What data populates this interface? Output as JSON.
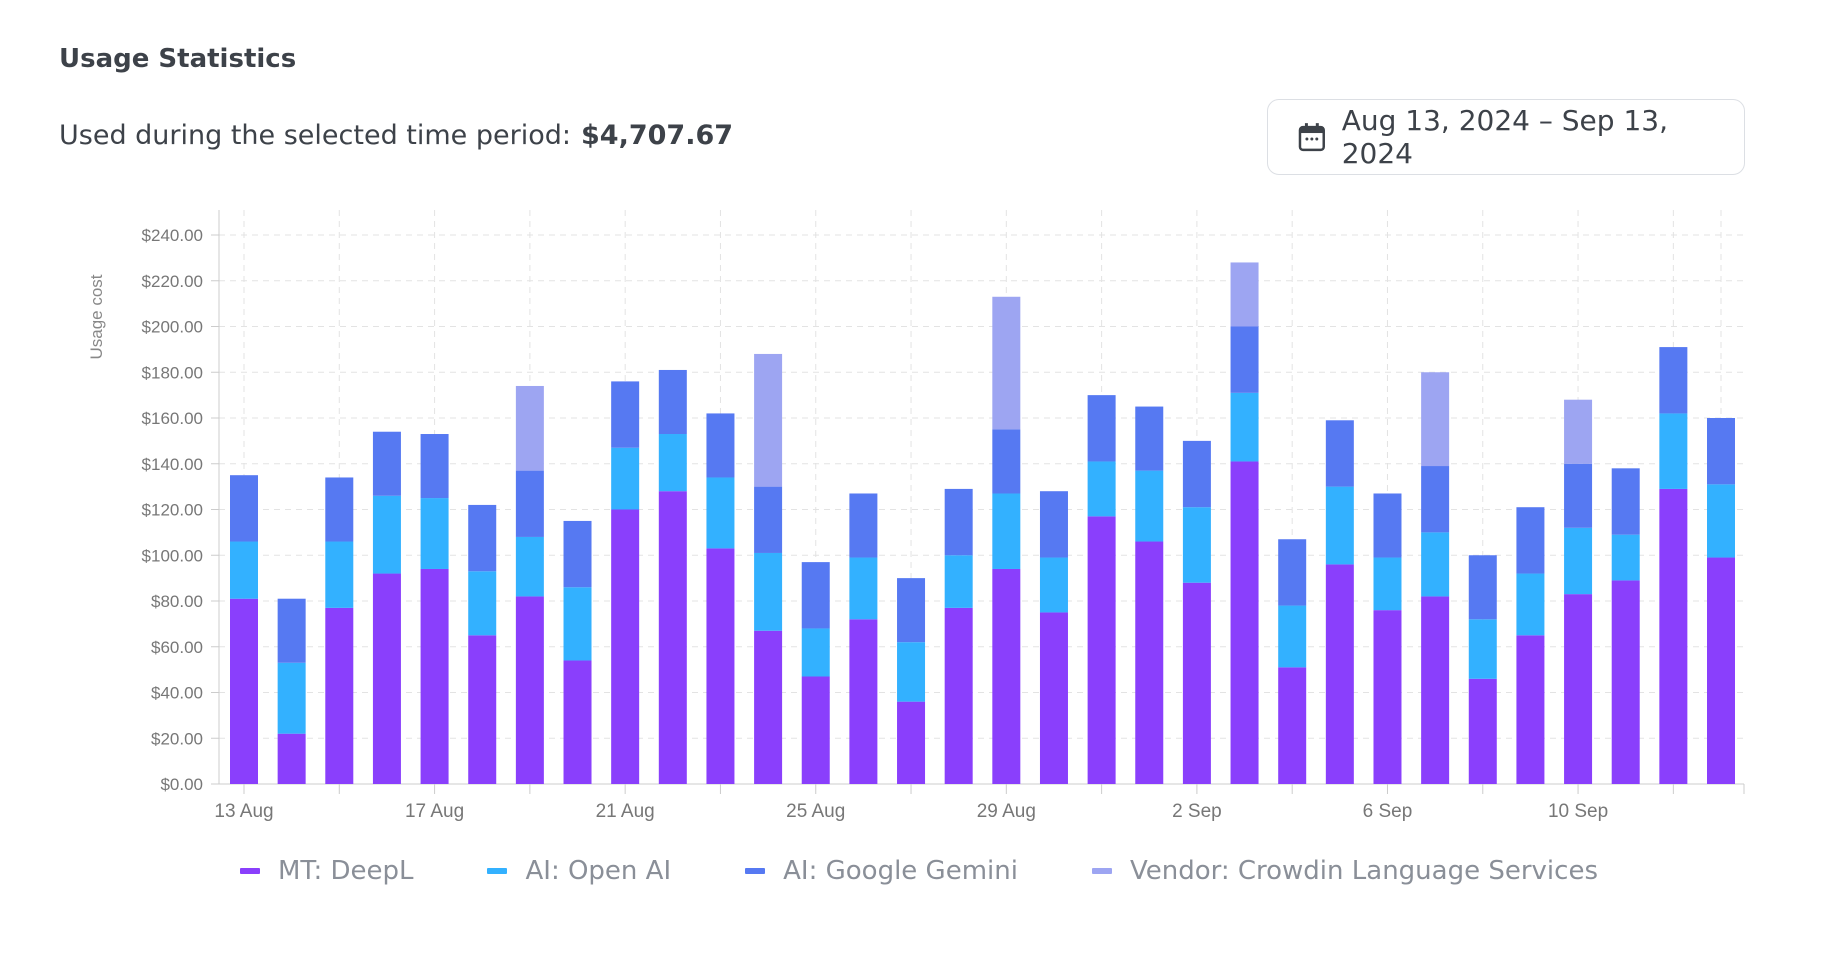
{
  "header": {
    "title": "Usage Statistics",
    "period_label": "Used during the selected time period:",
    "period_total": "$4,707.67",
    "date_range": "Aug 13, 2024 – Sep 13, 2024",
    "date_icon": "calendar-icon"
  },
  "chart_data": {
    "type": "bar",
    "stacked": true,
    "ylabel": "Usage cost",
    "xlabel": "",
    "ylim": [
      0,
      240
    ],
    "yticks": [
      "$0.00",
      "$20.00",
      "$40.00",
      "$60.00",
      "$80.00",
      "$100.00",
      "$120.00",
      "$140.00",
      "$160.00",
      "$180.00",
      "$200.00",
      "$220.00",
      "$240.00"
    ],
    "grid": true,
    "legend_position": "bottom",
    "categories": [
      "13 Aug",
      "14 Aug",
      "15 Aug",
      "16 Aug",
      "17 Aug",
      "18 Aug",
      "19 Aug",
      "20 Aug",
      "21 Aug",
      "22 Aug",
      "23 Aug",
      "24 Aug",
      "25 Aug",
      "26 Aug",
      "27 Aug",
      "28 Aug",
      "29 Aug",
      "30 Aug",
      "31 Aug",
      "1 Sep",
      "2 Sep",
      "3 Sep",
      "4 Sep",
      "5 Sep",
      "6 Sep",
      "7 Sep",
      "8 Sep",
      "9 Sep",
      "10 Sep",
      "11 Sep",
      "12 Sep",
      "13 Sep"
    ],
    "xtick_labels": [
      "13 Aug",
      "17 Aug",
      "21 Aug",
      "25 Aug",
      "29 Aug",
      "2 Sep",
      "6 Sep",
      "10 Sep"
    ],
    "series": [
      {
        "name": "MT: DeepL",
        "color": "#8a3ffc",
        "values": [
          81,
          22,
          77,
          92,
          94,
          65,
          82,
          54,
          120,
          128,
          103,
          67,
          47,
          72,
          36,
          77,
          94,
          75,
          117,
          106,
          88,
          141,
          51,
          96,
          76,
          82,
          46,
          65,
          83,
          89,
          129,
          99
        ]
      },
      {
        "name": "AI: Open AI",
        "color": "#33b1ff",
        "values": [
          25,
          31,
          29,
          34,
          31,
          28,
          26,
          32,
          27,
          25,
          31,
          34,
          21,
          27,
          26,
          23,
          33,
          24,
          24,
          31,
          33,
          30,
          27,
          34,
          23,
          28,
          26,
          27,
          29,
          20,
          33,
          32
        ]
      },
      {
        "name": "AI: Google Gemini",
        "color": "#5679f2",
        "values": [
          29,
          28,
          28,
          28,
          28,
          29,
          29,
          29,
          29,
          28,
          28,
          29,
          29,
          28,
          28,
          29,
          28,
          29,
          29,
          28,
          29,
          29,
          29,
          29,
          28,
          29,
          28,
          29,
          28,
          29,
          29,
          29
        ]
      },
      {
        "name": "Vendor: Crowdin Language Services",
        "color": "#9da5f2",
        "values": [
          0,
          0,
          0,
          0,
          0,
          0,
          37,
          0,
          0,
          0,
          0,
          58,
          0,
          0,
          0,
          0,
          58,
          0,
          0,
          0,
          0,
          28,
          0,
          0,
          0,
          41,
          0,
          0,
          28,
          0,
          0,
          0
        ]
      }
    ]
  }
}
